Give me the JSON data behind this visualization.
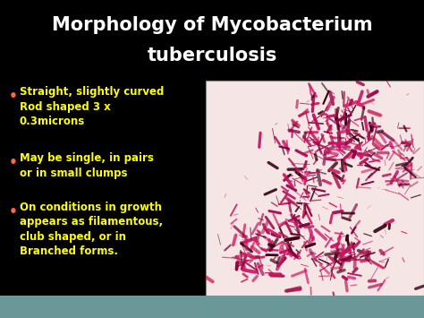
{
  "title_line1": "Morphology of Mycobacterium",
  "title_line2": "tuberculosis",
  "title_color": "#ffffff",
  "title_fontsize": 15,
  "title_fontweight": "bold",
  "background_color": "#000000",
  "bullet_text_color": "#ffff00",
  "bullet_fontsize": 8.5,
  "bullet_fontweight": "bold",
  "bullet_marker_color": "#ff6644",
  "bullets": [
    "Straight, slightly curved\nRod shaped 3 x\n0.3microns",
    "May be single, in pairs\nor in small clumps",
    "On conditions in growth\nappears as filamentous,\nclub shaped, or in\nBranched forms."
  ],
  "footer_color": "#6a9898",
  "image_bg": "#f5e5e5",
  "bact_colors": [
    "#c0185a",
    "#b01050",
    "#d02060",
    "#8b0040",
    "#cc1166",
    "#330011"
  ]
}
